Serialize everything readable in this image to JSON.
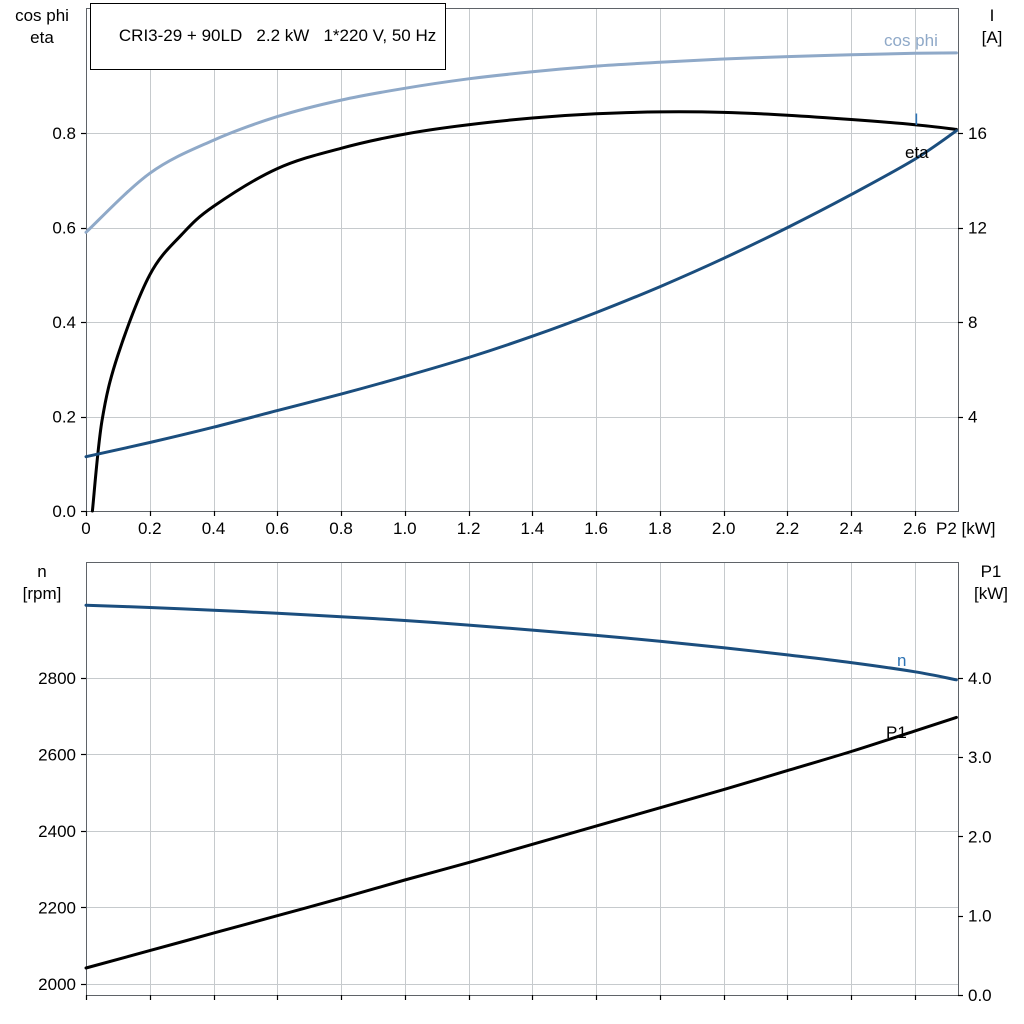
{
  "title_box": {
    "text": "CRI3-29 + 90LD   2.2 kW   1*220 V, 50 Hz"
  },
  "colors": {
    "cos_phi_curve": "#8fa9c8",
    "dark_blue_curve": "#1b4e7e",
    "black_curve": "#000000",
    "blue_label": "#2e74b5",
    "grid": "#c6cacd",
    "frame": "#5f6368",
    "tick": "#000000"
  },
  "top_chart": {
    "left_axis_label_line1": "cos phi",
    "left_axis_label_line2": "eta",
    "right_axis_label_line1": "I",
    "right_axis_label_line2": "[A]",
    "x_axis_label": "P2 [kW]",
    "label_cos_phi": "cos phi",
    "label_I": "I",
    "label_eta": "eta"
  },
  "bottom_chart": {
    "left_axis_label_line1": "n",
    "left_axis_label_line2": "[rpm]",
    "right_axis_label_line1": "P1",
    "right_axis_label_line2": "[kW]",
    "label_n": "n",
    "label_P1": "P1"
  },
  "chart_data": [
    {
      "type": "line",
      "title": "CRI3-29 + 90LD   2.2 kW   1*220 V, 50 Hz",
      "xlabel": "P2 [kW]",
      "ylabel_left": "cos phi / eta",
      "ylabel_right": "I [A]",
      "xlim": [
        0,
        2.735
      ],
      "ylim_left": [
        0,
        1.065
      ],
      "ylim_right": [
        0,
        21.3
      ],
      "grid": true,
      "legend_position": "inline-right",
      "xticks": [
        "0",
        "0.2",
        "0.4",
        "0.6",
        "0.8",
        "1.0",
        "1.2",
        "1.4",
        "1.6",
        "1.8",
        "2.0",
        "2.2",
        "2.4",
        "2.6"
      ],
      "yticks_left": [
        "0.0",
        "0.2",
        "0.4",
        "0.6",
        "0.8"
      ],
      "yticks_right": [
        "4",
        "8",
        "12",
        "16"
      ],
      "series": [
        {
          "name": "cos phi",
          "axis": "left",
          "color": "#8fa9c8",
          "x": [
            0,
            0.2,
            0.4,
            0.6,
            0.8,
            1.0,
            1.2,
            1.4,
            1.6,
            1.8,
            2.0,
            2.2,
            2.4,
            2.6,
            2.73
          ],
          "y": [
            0.59,
            0.715,
            0.785,
            0.835,
            0.87,
            0.895,
            0.915,
            0.93,
            0.942,
            0.95,
            0.957,
            0.962,
            0.966,
            0.969,
            0.97
          ]
        },
        {
          "name": "eta",
          "axis": "left",
          "color": "#000000",
          "x": [
            0.02,
            0.05,
            0.1,
            0.2,
            0.3,
            0.4,
            0.6,
            0.8,
            1.0,
            1.2,
            1.4,
            1.6,
            1.8,
            2.0,
            2.2,
            2.4,
            2.6,
            2.73
          ],
          "y": [
            0,
            0.19,
            0.33,
            0.5,
            0.585,
            0.645,
            0.725,
            0.768,
            0.798,
            0.818,
            0.832,
            0.841,
            0.845,
            0.844,
            0.838,
            0.829,
            0.818,
            0.808
          ]
        },
        {
          "name": "I",
          "axis": "right",
          "color": "#1b4e7e",
          "x": [
            0,
            0.2,
            0.4,
            0.6,
            0.8,
            1.0,
            1.2,
            1.4,
            1.6,
            1.8,
            2.0,
            2.2,
            2.4,
            2.6,
            2.73
          ],
          "y": [
            2.3,
            2.9,
            3.55,
            4.25,
            4.95,
            5.7,
            6.5,
            7.4,
            8.4,
            9.5,
            10.7,
            12.0,
            13.4,
            14.9,
            16.1
          ]
        }
      ]
    },
    {
      "type": "line",
      "title": "",
      "xlabel": "",
      "ylabel_left": "n [rpm]",
      "ylabel_right": "P1 [kW]",
      "xlim": [
        0,
        2.735
      ],
      "ylim_left": [
        1971,
        3103
      ],
      "ylim_right": [
        0,
        5.46
      ],
      "grid": true,
      "legend_position": "inline-right",
      "xticks": [
        "0",
        "0.2",
        "0.4",
        "0.6",
        "0.8",
        "1.0",
        "1.2",
        "1.4",
        "1.6",
        "1.8",
        "2.0",
        "2.2",
        "2.4",
        "2.6"
      ],
      "yticks_left": [
        "2000",
        "2200",
        "2400",
        "2600",
        "2800"
      ],
      "yticks_right": [
        "0.0",
        "1.0",
        "2.0",
        "3.0",
        "4.0"
      ],
      "series": [
        {
          "name": "n",
          "axis": "left",
          "color": "#1b4e7e",
          "x": [
            0,
            0.2,
            0.4,
            0.6,
            0.8,
            1.0,
            1.2,
            1.4,
            1.6,
            1.8,
            2.0,
            2.2,
            2.4,
            2.6,
            2.73
          ],
          "y": [
            2990,
            2984,
            2977,
            2969,
            2960,
            2950,
            2938,
            2925,
            2911,
            2896,
            2879,
            2860,
            2840,
            2816,
            2795
          ]
        },
        {
          "name": "P1",
          "axis": "right",
          "color": "#000000",
          "x": [
            0,
            0.2,
            0.4,
            0.6,
            0.8,
            1.0,
            1.2,
            1.4,
            1.6,
            1.8,
            2.0,
            2.2,
            2.4,
            2.6,
            2.73
          ],
          "y": [
            0.34,
            0.56,
            0.78,
            1.0,
            1.22,
            1.45,
            1.67,
            1.9,
            2.13,
            2.36,
            2.59,
            2.83,
            3.07,
            3.33,
            3.5
          ]
        }
      ]
    }
  ]
}
